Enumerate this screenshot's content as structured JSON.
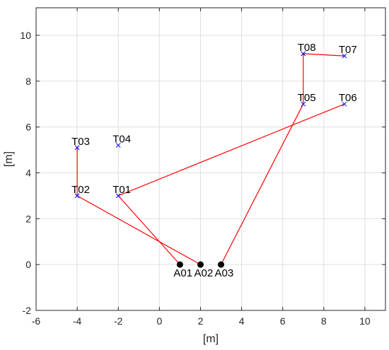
{
  "chart_data": {
    "type": "scatter",
    "title": "",
    "xlabel": "[m]",
    "ylabel": "[m]",
    "xlim": [
      -6,
      11
    ],
    "ylim": [
      -2,
      11.2
    ],
    "xticks": [
      -6,
      -4,
      -2,
      0,
      2,
      4,
      6,
      8,
      10
    ],
    "yticks": [
      -2,
      0,
      2,
      4,
      6,
      8,
      10
    ],
    "grid": true,
    "colors": {
      "path": "#ff0000",
      "target": "#0000ff",
      "agent": "#000000"
    },
    "targets": [
      {
        "label": "T01",
        "x": -2,
        "y": 3
      },
      {
        "label": "T02",
        "x": -4,
        "y": 3
      },
      {
        "label": "T03",
        "x": -4,
        "y": 5.1
      },
      {
        "label": "T04",
        "x": -2,
        "y": 5.2
      },
      {
        "label": "T05",
        "x": 7,
        "y": 7
      },
      {
        "label": "T06",
        "x": 9,
        "y": 7
      },
      {
        "label": "T07",
        "x": 9,
        "y": 9.1
      },
      {
        "label": "T08",
        "x": 7,
        "y": 9.2
      }
    ],
    "agents": [
      {
        "label": "A01",
        "x": 1,
        "y": 0
      },
      {
        "label": "A02",
        "x": 2,
        "y": 0
      },
      {
        "label": "A03",
        "x": 3,
        "y": 0
      }
    ],
    "paths": [
      {
        "x": [
          1,
          -2,
          9
        ],
        "y": [
          0,
          3,
          7
        ]
      },
      {
        "x": [
          2,
          -4,
          -4
        ],
        "y": [
          0,
          3,
          5.1
        ]
      },
      {
        "x": [
          3,
          7,
          7,
          9
        ],
        "y": [
          0,
          7,
          9.2,
          9.1
        ]
      }
    ]
  }
}
